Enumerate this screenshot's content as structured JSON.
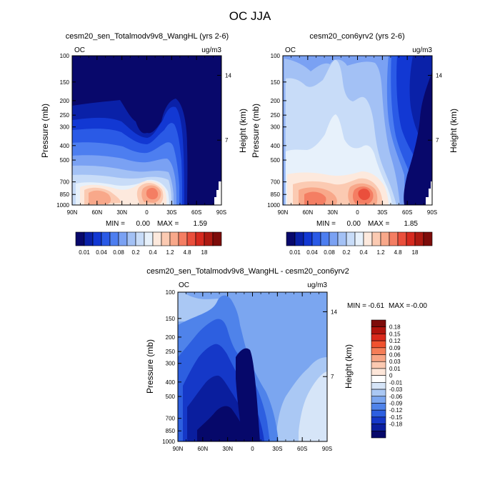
{
  "figure_title": "OC JJA",
  "colors": {
    "frame": "#000000",
    "background": "#ffffff"
  },
  "chart_data": [
    {
      "id": "p1",
      "type": "heatmap",
      "title": "cesm20_sen_Totalmodv9v8_WangHL (yrs 2-6)",
      "left_label": "OC",
      "right_label": "ug/m3",
      "ylabel": "Pressure (mb)",
      "y2label": "Height (km)",
      "y_ticks": [
        "100",
        "150",
        "200",
        "250",
        "300",
        "400",
        "500",
        "700",
        "850",
        "1000"
      ],
      "y2_ticks": [
        "14",
        "7"
      ],
      "x_ticks": [
        "90N",
        "60N",
        "30N",
        "0",
        "30S",
        "60S",
        "90S"
      ],
      "min_label": "MIN =",
      "min_value": "0.00",
      "max_label": "MAX =",
      "max_value": "1.59",
      "colorbar": {
        "labels": [
          "0.01",
          "0.04",
          "0.08",
          "0.2",
          "0.4",
          "1.2",
          "4.8",
          "18"
        ],
        "colors": [
          "#08086b",
          "#0a21a8",
          "#1238d3",
          "#2a5ae6",
          "#4d7ef0",
          "#7aa1f3",
          "#a3c1f5",
          "#c8dcf8",
          "#e7f1fb",
          "#fde9dd",
          "#fbcab2",
          "#f8a88a",
          "#f47e63",
          "#ea4f3c",
          "#d62a1f",
          "#ad1a12",
          "#7d0c0a"
        ]
      }
    },
    {
      "id": "p2",
      "type": "heatmap",
      "title": "cesm20_con6yrv2 (yrs 2-6)",
      "left_label": "OC",
      "right_label": "ug/m3",
      "ylabel": "Pressure (mb)",
      "y2label": "Height (km)",
      "y_ticks": [
        "100",
        "150",
        "200",
        "250",
        "300",
        "400",
        "500",
        "700",
        "850",
        "1000"
      ],
      "y2_ticks": [
        "14",
        "7"
      ],
      "x_ticks": [
        "90N",
        "60N",
        "30N",
        "0",
        "30S",
        "60S",
        "90S"
      ],
      "min_label": "MIN =",
      "min_value": "0.00",
      "max_label": "MAX =",
      "max_value": "1.85",
      "colorbar": {
        "labels": [
          "0.01",
          "0.04",
          "0.08",
          "0.2",
          "0.4",
          "1.2",
          "4.8",
          "18"
        ],
        "colors": [
          "#08086b",
          "#0a21a8",
          "#1238d3",
          "#2a5ae6",
          "#4d7ef0",
          "#7aa1f3",
          "#a3c1f5",
          "#c8dcf8",
          "#e7f1fb",
          "#fde9dd",
          "#fbcab2",
          "#f8a88a",
          "#f47e63",
          "#ea4f3c",
          "#d62a1f",
          "#ad1a12",
          "#7d0c0a"
        ]
      }
    },
    {
      "id": "p3",
      "type": "heatmap",
      "title": "cesm20_sen_Totalmodv9v8_WangHL - cesm20_con6yrv2",
      "left_label": "OC",
      "right_label": "ug/m3",
      "ylabel": "Pressure (mb)",
      "y2label": "Height (km)",
      "y_ticks": [
        "100",
        "150",
        "200",
        "250",
        "300",
        "400",
        "500",
        "700",
        "850",
        "1000"
      ],
      "y2_ticks": [
        "14",
        "7"
      ],
      "x_ticks": [
        "90N",
        "60N",
        "30N",
        "0",
        "30S",
        "60S",
        "90S"
      ],
      "min_label": "MIN =",
      "min_value": "-0.61",
      "max_label": "MAX =",
      "max_value": "-0.00",
      "colorbar": {
        "labels": [
          "0.18",
          "0.15",
          "0.12",
          "0.09",
          "0.06",
          "0.03",
          "0.01",
          "0",
          "-0.01",
          "-0.03",
          "-0.06",
          "-0.09",
          "-0.12",
          "-0.15",
          "-0.18"
        ],
        "colors": [
          "#7d0c0a",
          "#b0140d",
          "#da2a1c",
          "#f0522f",
          "#f57d57",
          "#f8a585",
          "#fbc9b1",
          "#fde6d9",
          "#ffffff",
          "#d6e5f8",
          "#aac8f4",
          "#7ba6f0",
          "#4f83ea",
          "#2d5fe0",
          "#1538c8",
          "#0a1e9e",
          "#06086a"
        ]
      }
    }
  ]
}
